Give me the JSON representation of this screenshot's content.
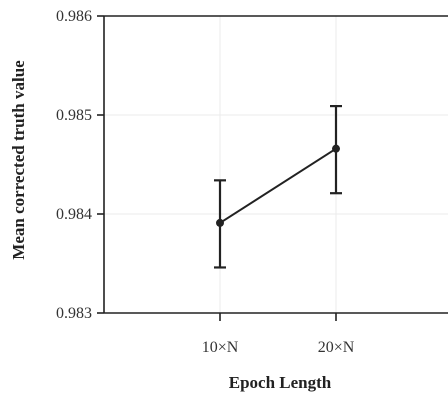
{
  "chart_data": {
    "type": "line",
    "title": "",
    "xlabel": "Epoch Length",
    "ylabel": "Mean corrected truth value",
    "categories": [
      "10×N",
      "20×N"
    ],
    "series": [
      {
        "values": [
          0.98391,
          0.98466
        ],
        "error_low": [
          0.98346,
          0.98421
        ],
        "error_high": [
          0.98434,
          0.98509
        ]
      }
    ],
    "ylim": [
      0.983,
      0.986
    ],
    "yticks": [
      0.983,
      0.984,
      0.985,
      0.986
    ],
    "ytick_labels": [
      "0.983",
      "0.984",
      "0.985",
      "0.986"
    ],
    "grid": true,
    "colors": {
      "line": "#222222",
      "grid": "#ebebeb",
      "axis": "#222222"
    }
  }
}
